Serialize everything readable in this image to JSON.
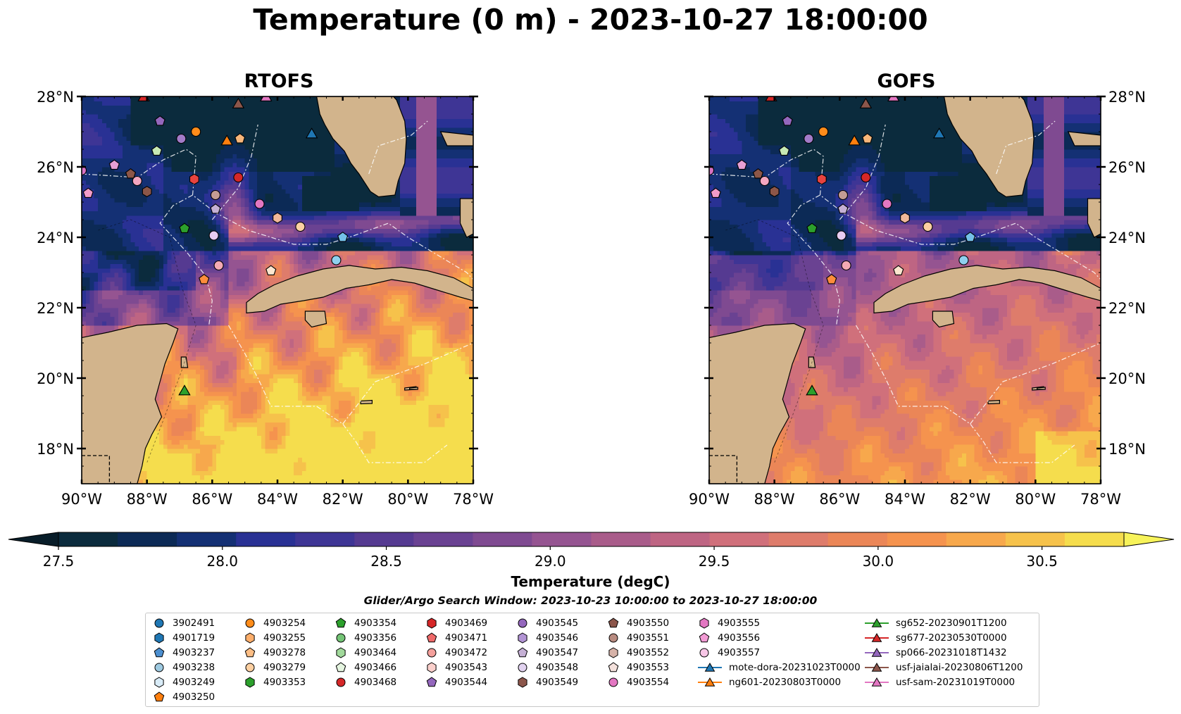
{
  "title": "Temperature (0 m) - 2023-10-27 18:00:00",
  "panels": [
    {
      "title": "RTOFS",
      "variant": "rtofs"
    },
    {
      "title": "GOFS",
      "variant": "gofs"
    }
  ],
  "chart_data": {
    "type": "heatmap",
    "map_extent": {
      "lon": [
        -90,
        -78
      ],
      "lat": [
        17,
        28
      ]
    },
    "xticks": [
      "90°W",
      "88°W",
      "86°W",
      "84°W",
      "82°W",
      "80°W",
      "78°W"
    ],
    "yticks": [
      "28°N",
      "26°N",
      "24°N",
      "22°N",
      "20°N",
      "18°N"
    ],
    "colorbar": {
      "label": "Temperature (degC)",
      "range": [
        27.5,
        30.75
      ],
      "ticks": [
        "27.5",
        "28.0",
        "28.5",
        "29.0",
        "29.5",
        "30.0",
        "30.5"
      ],
      "tick_values": [
        27.5,
        28.0,
        28.5,
        29.0,
        29.5,
        30.0,
        30.5
      ],
      "extend": "both",
      "colors": [
        "#0b2b3d",
        "#0c2a56",
        "#143074",
        "#293194",
        "#3e3595",
        "#553a91",
        "#6a4292",
        "#7f4a91",
        "#955491",
        "#a95c8a",
        "#be6583",
        "#d0707b",
        "#de7c6b",
        "#eb8657",
        "#f5934e",
        "#f7a84c",
        "#f6c24b",
        "#f5dd4d"
      ]
    },
    "land_color": "#d2b48c",
    "search_window": "Glider/Argo Search Window: 2023-10-23 10:00:00 to 2023-10-27 18:00:00",
    "markers": [
      {
        "lon": -90.0,
        "lat": 25.9,
        "shape": "circle",
        "color": "#d872c4"
      },
      {
        "lon": -89.0,
        "lat": 26.05,
        "shape": "pentagon",
        "color": "#e69fd4"
      },
      {
        "lon": -89.8,
        "lat": 25.25,
        "shape": "pentagon",
        "color": "#f29bc9"
      },
      {
        "lon": -88.5,
        "lat": 25.8,
        "shape": "pentagon",
        "color": "#8c5648"
      },
      {
        "lon": -88.3,
        "lat": 25.6,
        "shape": "circle",
        "color": "#f4a6c0"
      },
      {
        "lon": -88.0,
        "lat": 25.3,
        "shape": "hexagon",
        "color": "#8c5648"
      },
      {
        "lon": -87.7,
        "lat": 26.45,
        "shape": "pentagon",
        "color": "#c7e9b4"
      },
      {
        "lon": -87.6,
        "lat": 27.3,
        "shape": "pentagon",
        "color": "#9467bd"
      },
      {
        "lon": -86.95,
        "lat": 26.8,
        "shape": "circle",
        "color": "#a37bc8"
      },
      {
        "lon": -86.5,
        "lat": 27.0,
        "shape": "circle",
        "color": "#ff8c1a"
      },
      {
        "lon": -86.55,
        "lat": 25.65,
        "shape": "hexagon",
        "color": "#e8433f"
      },
      {
        "lon": -86.85,
        "lat": 24.25,
        "shape": "pentagon",
        "color": "#2ca02c"
      },
      {
        "lon": -85.9,
        "lat": 25.2,
        "shape": "circle",
        "color": "#c49c94"
      },
      {
        "lon": -85.9,
        "lat": 24.8,
        "shape": "pentagon",
        "color": "#c5b0d5"
      },
      {
        "lon": -85.2,
        "lat": 25.7,
        "shape": "circle",
        "color": "#d62728"
      },
      {
        "lon": -85.15,
        "lat": 26.8,
        "shape": "pentagon",
        "color": "#f7b67a"
      },
      {
        "lon": -84.55,
        "lat": 24.95,
        "shape": "circle",
        "color": "#e377c2"
      },
      {
        "lon": -84.0,
        "lat": 24.55,
        "shape": "hexagon",
        "color": "#f0b89a"
      },
      {
        "lon": -83.3,
        "lat": 24.3,
        "shape": "circle",
        "color": "#fdd0a2"
      },
      {
        "lon": -85.95,
        "lat": 24.05,
        "shape": "circle",
        "color": "#e7cdf2"
      },
      {
        "lon": -85.8,
        "lat": 23.2,
        "shape": "circle",
        "color": "#f4aab4"
      },
      {
        "lon": -84.2,
        "lat": 23.05,
        "shape": "pentagon",
        "color": "#fde6cf"
      },
      {
        "lon": -86.25,
        "lat": 22.8,
        "shape": "pentagon",
        "color": "#fd8d3c"
      },
      {
        "lon": -82.0,
        "lat": 24.0,
        "shape": "pentagon",
        "color": "#74c0e8"
      },
      {
        "lon": -82.2,
        "lat": 23.35,
        "shape": "circle",
        "color": "#8fd0ef"
      },
      {
        "lon": -88.1,
        "lat": 28.0,
        "shape": "triangle",
        "color": "#d62728"
      },
      {
        "lon": -85.2,
        "lat": 27.8,
        "shape": "triangle",
        "color": "#8c564b"
      },
      {
        "lon": -85.55,
        "lat": 26.75,
        "shape": "triangle",
        "color": "#ff7f0e"
      },
      {
        "lon": -84.35,
        "lat": 28.0,
        "shape": "triangle",
        "color": "#e377c2"
      },
      {
        "lon": -82.95,
        "lat": 26.95,
        "shape": "triangle",
        "color": "#1f77b4"
      },
      {
        "lon": -86.85,
        "lat": 19.65,
        "shape": "triangle",
        "color": "#2ca02c"
      }
    ],
    "legend": [
      [
        "3902491",
        "4901719",
        "4903237",
        "4903238",
        "4903249",
        "4903250"
      ],
      [
        "4903254",
        "4903255",
        "4903278",
        "4903279",
        "4903353"
      ],
      [
        "4903354",
        "4903356",
        "4903464",
        "4903466",
        "4903468"
      ],
      [
        "4903469",
        "4903471",
        "4903472",
        "4903543",
        "4903544"
      ],
      [
        "4903545",
        "4903546",
        "4903547",
        "4903548",
        "4903549"
      ],
      [
        "4903550",
        "4903551",
        "4903552",
        "4903553",
        "4903554"
      ],
      [
        "4903555",
        "4903556",
        "4903557",
        "mote-dora-20231023T0000",
        "ng601-20230803T0000"
      ],
      [
        "sg652-20230901T1200",
        "sg677-20230530T0000",
        "sp066-20231018T1432",
        "usf-jaialai-20230806T1200",
        "usf-sam-20231019T0000"
      ]
    ],
    "legend_styles": [
      [
        [
          "circle",
          "#1f77b4"
        ],
        [
          "hexagon",
          "#1f77b4"
        ],
        [
          "pentagon",
          "#4c8fd0"
        ],
        [
          "circle",
          "#9ecae1"
        ],
        [
          "hexagon",
          "#d9ecf8"
        ],
        [
          "pentagon",
          "#ff7f0e"
        ]
      ],
      [
        [
          "circle",
          "#ff8c1a"
        ],
        [
          "hexagon",
          "#fdae6b"
        ],
        [
          "pentagon",
          "#fdbe85"
        ],
        [
          "circle",
          "#fdd0a2"
        ],
        [
          "hexagon",
          "#2ca02c"
        ]
      ],
      [
        [
          "pentagon",
          "#2ca02c"
        ],
        [
          "circle",
          "#74c476"
        ],
        [
          "hexagon",
          "#a1d99b"
        ],
        [
          "pentagon",
          "#e5f5e0"
        ],
        [
          "circle",
          "#d62728"
        ]
      ],
      [
        [
          "hexagon",
          "#d62728"
        ],
        [
          "pentagon",
          "#ef6a6a"
        ],
        [
          "circle",
          "#f4a09c"
        ],
        [
          "hexagon",
          "#fbd0cc"
        ],
        [
          "pentagon",
          "#9467bd"
        ]
      ],
      [
        [
          "circle",
          "#9467bd"
        ],
        [
          "hexagon",
          "#b294d4"
        ],
        [
          "pentagon",
          "#c5b0d5"
        ],
        [
          "circle",
          "#e2d3f0"
        ],
        [
          "hexagon",
          "#8c564b"
        ]
      ],
      [
        [
          "pentagon",
          "#8c564b"
        ],
        [
          "circle",
          "#b88b80"
        ],
        [
          "hexagon",
          "#d6b2a8"
        ],
        [
          "pentagon",
          "#f4e1dc"
        ],
        [
          "circle",
          "#e377c2"
        ]
      ],
      [
        [
          "hexagon",
          "#e377c2"
        ],
        [
          "pentagon",
          "#f29bd4"
        ],
        [
          "circle",
          "#f7c6e6"
        ],
        [
          "line-triangle",
          "#1f77b4"
        ],
        [
          "line-triangle",
          "#ff7f0e"
        ]
      ],
      [
        [
          "line-triangle",
          "#2ca02c"
        ],
        [
          "line-triangle",
          "#d62728"
        ],
        [
          "line-triangle",
          "#9467bd"
        ],
        [
          "line-triangle",
          "#8c564b"
        ],
        [
          "line-triangle",
          "#e377c2"
        ]
      ]
    ]
  }
}
